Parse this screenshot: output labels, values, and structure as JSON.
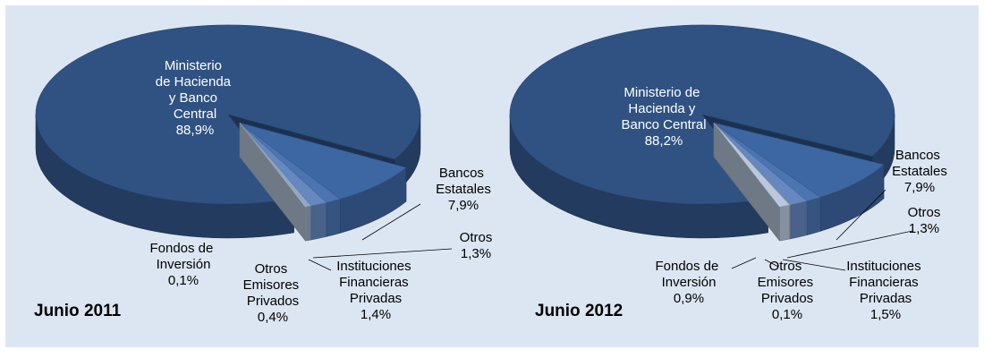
{
  "chart_data": [
    {
      "type": "pie",
      "title": "Junio 2011",
      "categories": [
        "Ministerio de Hacienda y Banco Central",
        "Bancos Estatales",
        "Otros",
        "Instituciones Financieras Privadas",
        "Otros Emisores Privados",
        "Fondos de Inversión"
      ],
      "values": [
        88.9,
        7.9,
        1.3,
        1.4,
        0.4,
        0.1
      ],
      "value_labels": [
        "88,9%",
        "7,9%",
        "1,3%",
        "1,4%",
        "0,4%",
        "0,1%"
      ],
      "colors": [
        "#2f5282",
        "#3d67a3",
        "#4a74b2",
        "#6488bf",
        "#8fa8cd",
        "#b9c8de"
      ]
    },
    {
      "type": "pie",
      "title": "Junio 2012",
      "categories": [
        "Ministerio de Hacienda y Banco Central",
        "Bancos Estatales",
        "Otros",
        "Instituciones Financieras Privadas",
        "Otros Emisores Privados",
        "Fondos de Inversión"
      ],
      "values": [
        88.2,
        7.9,
        1.3,
        1.5,
        0.1,
        0.9
      ],
      "value_labels": [
        "88,2%",
        "7,9%",
        "1,3%",
        "1,5%",
        "0,1%",
        "0,9%"
      ],
      "colors": [
        "#2f5282",
        "#3d67a3",
        "#4a74b2",
        "#6488bf",
        "#8fa8cd",
        "#b9c8de"
      ]
    }
  ]
}
